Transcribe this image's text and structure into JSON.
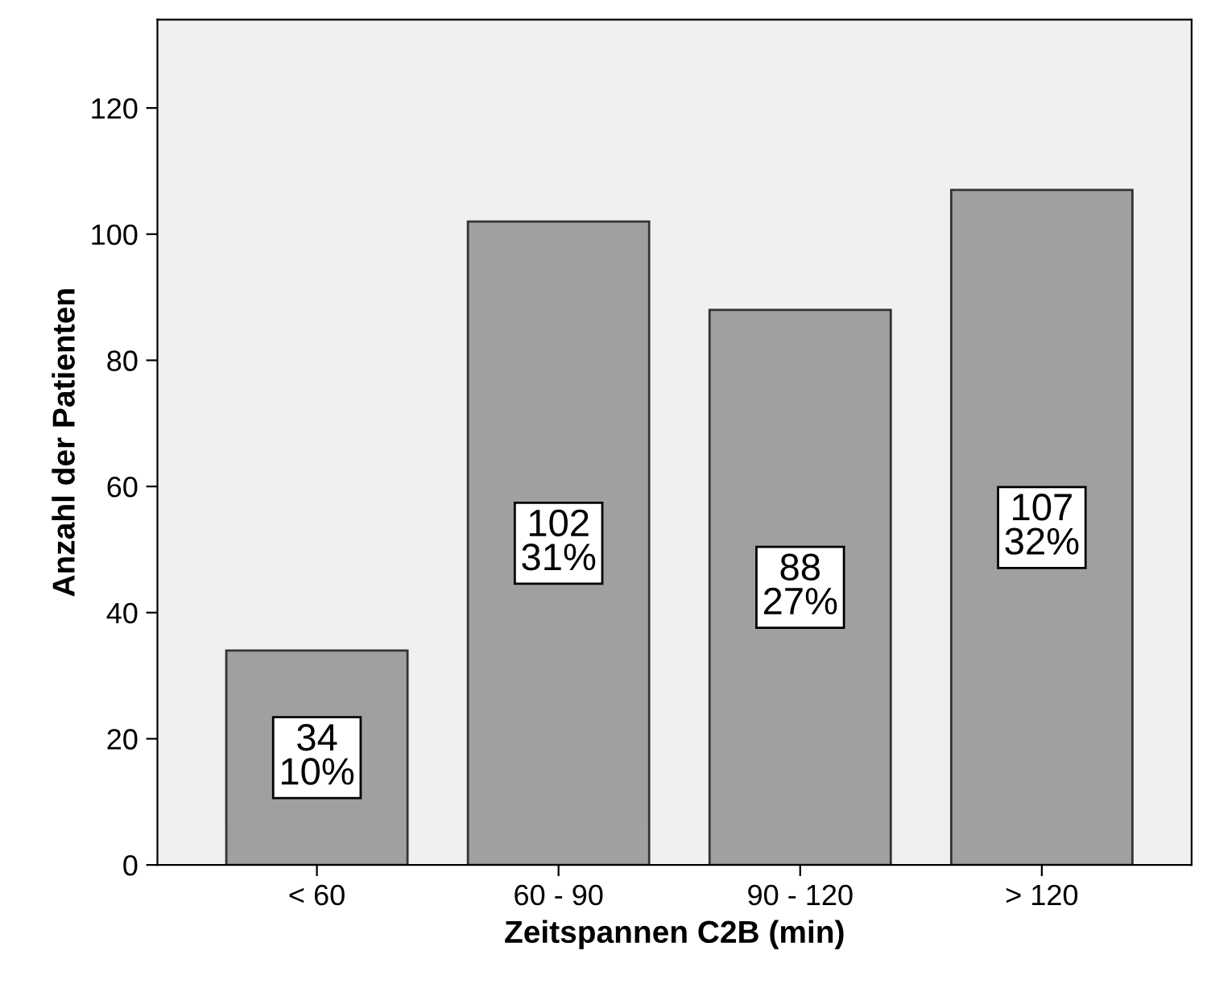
{
  "chart_data": {
    "type": "bar",
    "xlabel": "Zeitspannen C2B (min)",
    "ylabel": "Anzahl der Patienten",
    "categories": [
      "< 60",
      "60 - 90",
      "90 - 120",
      "> 120"
    ],
    "values": [
      34,
      102,
      88,
      107
    ],
    "value_labels": [
      "34\n10%",
      "102\n31%",
      "88\n27%",
      "107\n32%"
    ],
    "color": "#a0a0a0",
    "ylim": [
      0,
      134
    ],
    "yticks": [
      0,
      20,
      40,
      60,
      80,
      100,
      120
    ],
    "grid": false
  }
}
